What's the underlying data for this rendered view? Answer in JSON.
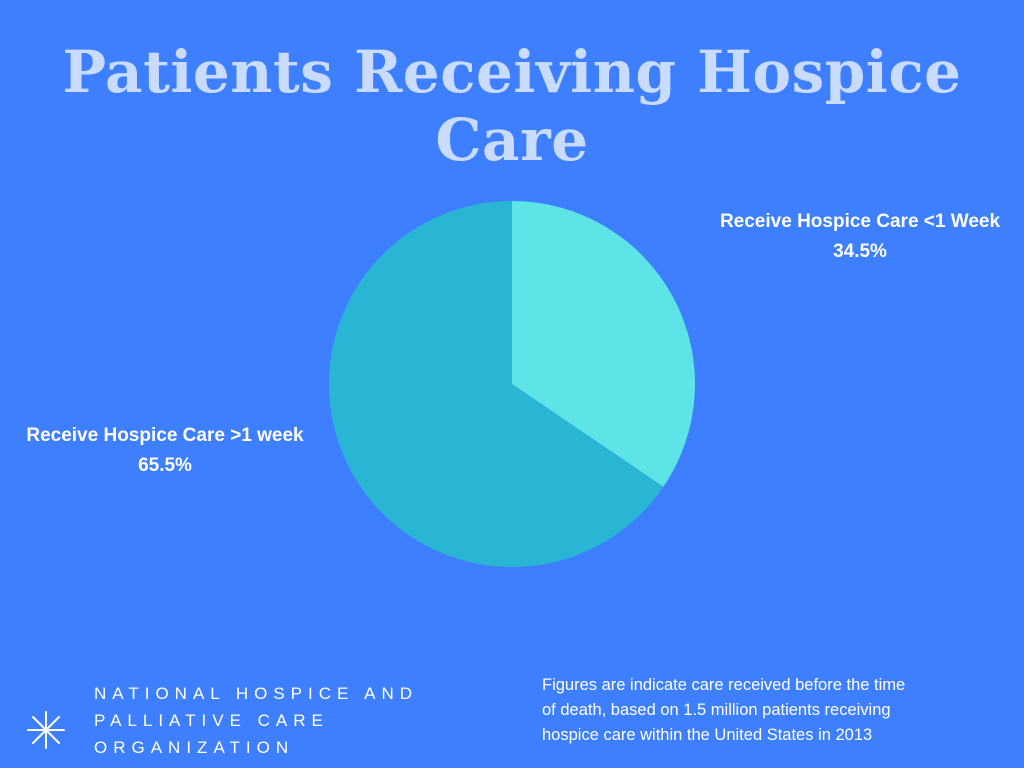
{
  "title": "Patients Receiving Hospice Care",
  "colors": {
    "background": "#3d7fff",
    "title": "#c9dcff",
    "slice_small": "#5ee3e6",
    "slice_large": "#29b5d4"
  },
  "chart_data": {
    "type": "pie",
    "slices": [
      {
        "label": "Receive Hospice Care <1 Week",
        "value": 34.5,
        "value_text": "34.5%",
        "color": "#5ee3e6"
      },
      {
        "label": "Receive Hospice Care >1 week",
        "value": 65.5,
        "value_text": "65.5%",
        "color": "#29b5d4"
      }
    ]
  },
  "organization": {
    "lines": [
      "NATIONAL HOSPICE AND",
      "PALLIATIVE CARE",
      "ORGANIZATION"
    ],
    "logo_icon": "asterisk-star-icon"
  },
  "footnote": {
    "lines": [
      "Figures are indicate care received before the time",
      "of death, based on 1.5 million patients receiving",
      "hospice care within the United States in 2013"
    ]
  }
}
